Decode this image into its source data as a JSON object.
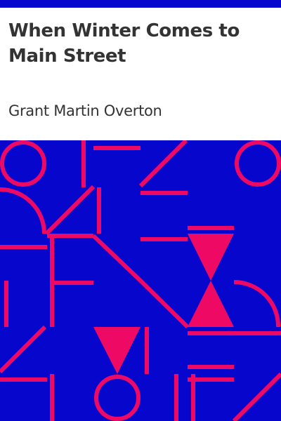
{
  "book": {
    "title": "When Winter Comes to Main Street",
    "author": "Grant Martin Overton"
  },
  "colors": {
    "band": "#0606cc",
    "pattern": "#ee0a64",
    "header_bg": "#ffffff",
    "text": "#333333"
  }
}
